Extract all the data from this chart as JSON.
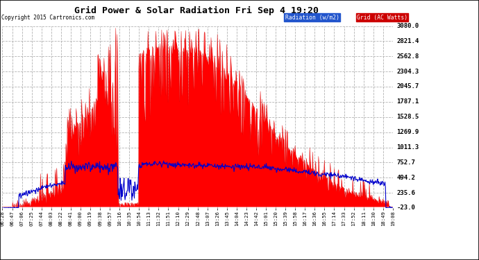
{
  "title": "Grid Power & Solar Radiation Fri Sep 4 19:20",
  "copyright": "Copyright 2015 Cartronics.com",
  "legend_radiation": "Radiation (w/m2)",
  "legend_grid": "Grid (AC Watts)",
  "yticks": [
    3080.0,
    2821.4,
    2562.8,
    2304.3,
    2045.7,
    1787.1,
    1528.5,
    1269.9,
    1011.3,
    752.7,
    494.2,
    235.6,
    -23.0
  ],
  "ymin": -23.0,
  "ymax": 3080.0,
  "bg_color": "#ffffff",
  "plot_bg_color": "#ffffff",
  "grid_color": "#aaaaaa",
  "radiation_fill_color": "#ff0000",
  "radiation_line_color": "#dd0000",
  "grid_line_color": "#0000cc",
  "xtick_labels": [
    "06:28",
    "06:47",
    "07:06",
    "07:25",
    "07:44",
    "08:03",
    "08:22",
    "08:41",
    "09:00",
    "09:19",
    "09:38",
    "09:57",
    "10:16",
    "10:35",
    "10:54",
    "11:13",
    "11:32",
    "11:51",
    "12:10",
    "12:29",
    "12:48",
    "13:07",
    "13:26",
    "13:45",
    "14:04",
    "14:23",
    "14:42",
    "15:01",
    "15:20",
    "15:39",
    "15:58",
    "16:17",
    "16:36",
    "16:55",
    "17:14",
    "17:33",
    "17:52",
    "18:11",
    "18:30",
    "18:49",
    "19:08"
  ],
  "num_points": 800
}
